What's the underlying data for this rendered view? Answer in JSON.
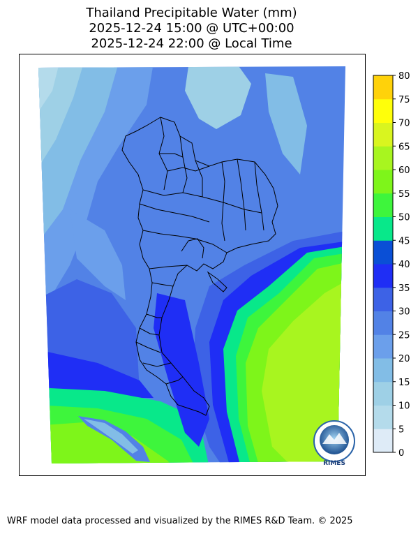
{
  "title": {
    "line1": "Thailand Precipitable Water (mm)",
    "line2": "2025-12-24 15:00 @ UTC+00:00",
    "line3": "2025-12-24 22:00 @ Local Time"
  },
  "colorbar": {
    "ticks": [
      "0",
      "5",
      "10",
      "15",
      "20",
      "25",
      "30",
      "35",
      "40",
      "45",
      "50",
      "55",
      "60",
      "65",
      "70",
      "75",
      "80"
    ],
    "colors": [
      "#deebf7",
      "#b4dbeb",
      "#9ed0e6",
      "#82bde6",
      "#6b9feb",
      "#5282e6",
      "#3d62e6",
      "#1f2ef5",
      "#0a4fd6",
      "#08e88a",
      "#3ef53c",
      "#7ef51a",
      "#a8f51f",
      "#d9f51f",
      "#ffff0a",
      "#ffd20a"
    ]
  },
  "map": {
    "region": "Thailand",
    "variable": "Precipitable Water (mm)",
    "logo_text": "RIMES"
  },
  "footer": "WRF model data processed and visualized by the RIMES R&D Team. © 2025"
}
